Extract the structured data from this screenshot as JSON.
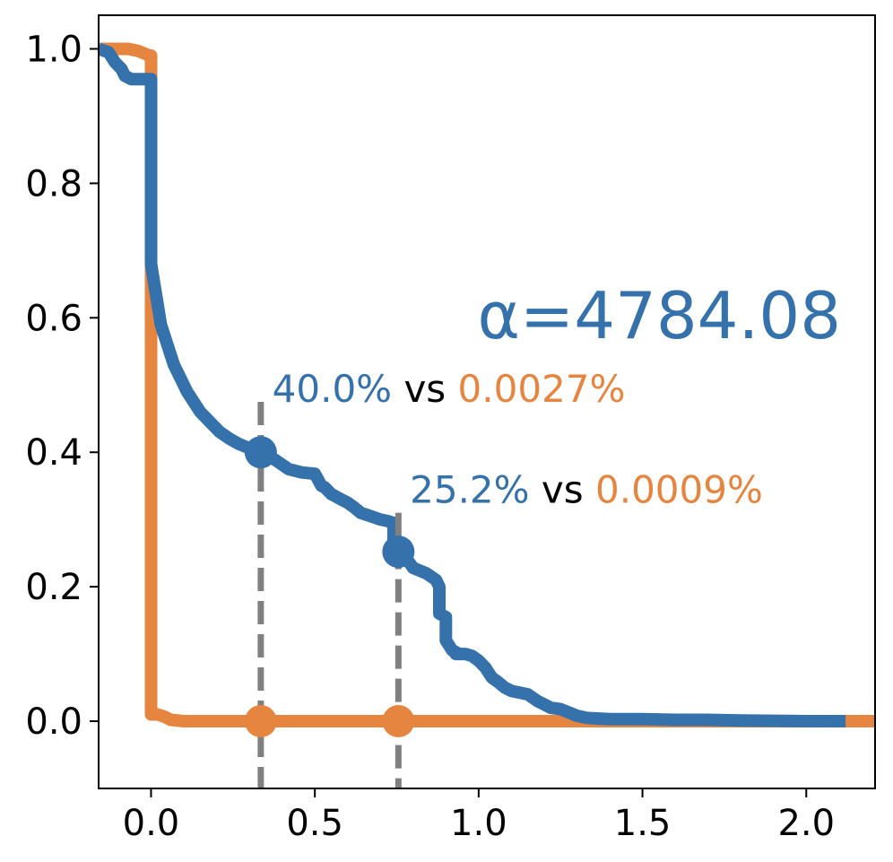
{
  "chart_data": {
    "type": "line",
    "title": "",
    "xlabel": "",
    "ylabel": "",
    "xlim": [
      -0.16,
      2.21
    ],
    "ylim": [
      -0.1,
      1.05
    ],
    "x_ticks": [
      {
        "value": 0.0,
        "label": "0.0"
      },
      {
        "value": 0.5,
        "label": "0.5"
      },
      {
        "value": 1.0,
        "label": "1.0"
      },
      {
        "value": 1.5,
        "label": "1.5"
      },
      {
        "value": 2.0,
        "label": "2.0"
      }
    ],
    "y_ticks": [
      {
        "value": 0.0,
        "label": "0.0"
      },
      {
        "value": 0.2,
        "label": "0.2"
      },
      {
        "value": 0.4,
        "label": "0.4"
      },
      {
        "value": 0.6,
        "label": "0.6"
      },
      {
        "value": 0.8,
        "label": "0.8"
      },
      {
        "value": 1.0,
        "label": "1.0"
      }
    ],
    "series": [
      {
        "name": "orange",
        "color": "#e6853f",
        "x": [
          -0.16,
          -0.1,
          -0.07,
          -0.04,
          -0.02,
          -0.005,
          0.0,
          0.0,
          0.0,
          0.0,
          0.02,
          0.04,
          0.06,
          0.1,
          0.5,
          1.0,
          1.5,
          2.0,
          2.21
        ],
        "y": [
          1.0,
          1.0,
          1.0,
          0.997,
          0.993,
          0.99,
          0.99,
          0.65,
          0.3,
          0.01,
          0.01,
          0.007,
          0.002,
          0.0,
          0.0,
          0.0,
          0.0,
          0.0,
          0.0
        ]
      },
      {
        "name": "blue",
        "color": "#3571ab",
        "x": [
          -0.16,
          -0.13,
          -0.11,
          -0.09,
          -0.08,
          -0.06,
          -0.03,
          -0.01,
          0.0,
          0.0,
          0.0,
          0.01,
          0.02,
          0.03,
          0.05,
          0.07,
          0.09,
          0.11,
          0.13,
          0.15,
          0.18,
          0.21,
          0.24,
          0.27,
          0.3,
          0.33,
          0.36,
          0.39,
          0.42,
          0.46,
          0.5,
          0.52,
          0.53,
          0.55,
          0.58,
          0.6,
          0.62,
          0.64,
          0.67,
          0.7,
          0.72,
          0.74,
          0.74,
          0.76,
          0.8,
          0.84,
          0.87,
          0.88,
          0.88,
          0.9,
          0.9,
          0.92,
          0.93,
          0.93,
          0.96,
          0.98,
          1.0,
          1.02,
          1.04,
          1.06,
          1.08,
          1.1,
          1.12,
          1.15,
          1.18,
          1.2,
          1.22,
          1.25,
          1.28,
          1.3,
          1.33,
          1.36,
          1.4,
          1.5,
          1.6,
          1.7,
          1.8,
          2.0,
          2.12
        ],
        "y": [
          1.0,
          0.995,
          0.98,
          0.97,
          0.96,
          0.955,
          0.955,
          0.955,
          0.955,
          0.72,
          0.68,
          0.65,
          0.62,
          0.59,
          0.56,
          0.53,
          0.51,
          0.49,
          0.475,
          0.46,
          0.445,
          0.43,
          0.42,
          0.412,
          0.406,
          0.4,
          0.395,
          0.385,
          0.375,
          0.37,
          0.368,
          0.35,
          0.348,
          0.338,
          0.33,
          0.325,
          0.318,
          0.31,
          0.305,
          0.3,
          0.298,
          0.295,
          0.26,
          0.255,
          0.228,
          0.22,
          0.21,
          0.2,
          0.16,
          0.155,
          0.12,
          0.105,
          0.103,
          0.1,
          0.1,
          0.097,
          0.09,
          0.08,
          0.065,
          0.058,
          0.05,
          0.045,
          0.043,
          0.04,
          0.03,
          0.025,
          0.02,
          0.018,
          0.012,
          0.008,
          0.005,
          0.004,
          0.003,
          0.003,
          0.002,
          0.002,
          0.001,
          0.0,
          0.0
        ]
      }
    ],
    "vlines": [
      {
        "x": 0.335,
        "y_top": 0.475
      },
      {
        "x": 0.755,
        "y_top": 0.31
      }
    ],
    "markers": [
      {
        "series": "blue",
        "x": 0.335,
        "y": 0.4
      },
      {
        "series": "blue",
        "x": 0.755,
        "y": 0.252
      },
      {
        "series": "orange",
        "x": 0.335,
        "y": 0.0
      },
      {
        "series": "orange",
        "x": 0.755,
        "y": 0.0
      }
    ],
    "annotations": [
      {
        "anchor_x": 0.37,
        "anchor_y": 0.475,
        "blue": "40.0%",
        "mid": " vs ",
        "orange": "0.0027%"
      },
      {
        "anchor_x": 0.79,
        "anchor_y": 0.325,
        "blue": "25.2%",
        "mid": " vs ",
        "orange": "0.0009%"
      }
    ],
    "alpha_text": "α=4784.08"
  }
}
